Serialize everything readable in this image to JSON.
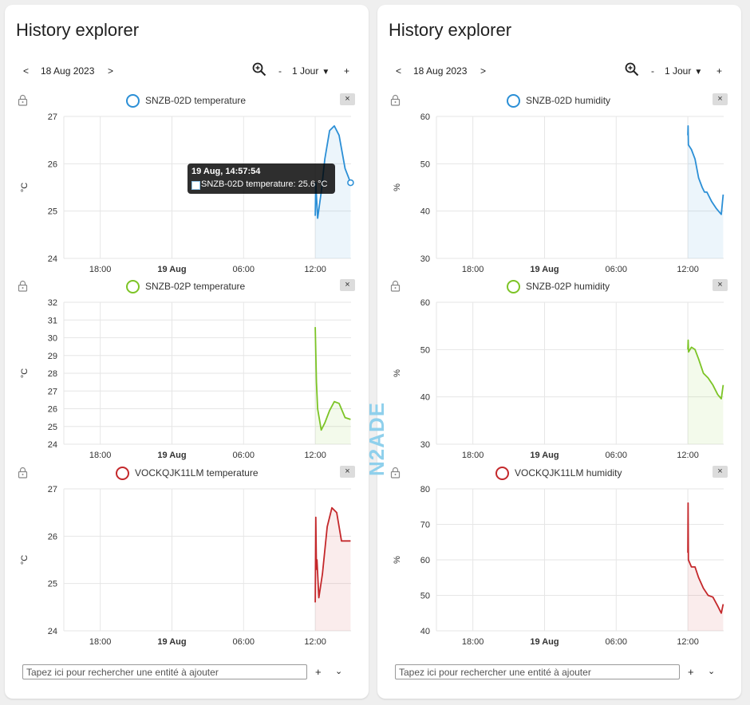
{
  "cards": [
    {
      "title": "History explorer",
      "toolbar": {
        "prev": "<",
        "date": "18 Aug 2023",
        "next": ">",
        "minus": "-",
        "range": "1 Jour",
        "plus": "+"
      },
      "search": {
        "placeholder": "Tapez ici pour rechercher une entité à ajouter",
        "plus": "+"
      },
      "charts": [
        {
          "legend": "SNZB-02D temperature",
          "close": "×",
          "unit": "°C"
        },
        {
          "legend": "SNZB-02P temperature",
          "close": "×",
          "unit": "°C"
        },
        {
          "legend": "VOCKQJK11LM temperature",
          "close": "×",
          "unit": "°C"
        }
      ]
    },
    {
      "title": "History explorer",
      "toolbar": {
        "prev": "<",
        "date": "18 Aug 2023",
        "next": ">",
        "minus": "-",
        "range": "1 Jour",
        "plus": "+"
      },
      "search": {
        "placeholder": "Tapez ici pour rechercher une entité à ajouter",
        "plus": "+"
      },
      "charts": [
        {
          "legend": "SNZB-02D humidity",
          "close": "×",
          "unit": "%"
        },
        {
          "legend": "SNZB-02P humidity",
          "close": "×",
          "unit": "%"
        },
        {
          "legend": "VOCKQJK11LM humidity",
          "close": "×",
          "unit": "%"
        }
      ]
    }
  ],
  "tooltip": {
    "title": "19 Aug, 14:57:54",
    "text": "SNZB-02D temperature: 25.6 °C"
  },
  "watermark": "N2ADE",
  "colors": {
    "blue": "#2b8fd6",
    "green": "#7cc426",
    "red": "#c4282b"
  },
  "chart_data": [
    {
      "type": "line",
      "title": "SNZB-02D temperature",
      "color": "#2b8fd6",
      "ylabel": "°C",
      "x_ticks": [
        "18:00",
        "19 Aug",
        "06:00",
        "12:00"
      ],
      "x_bold": "19 Aug",
      "ylim": [
        24,
        27
      ],
      "yticks": [
        24,
        25,
        26,
        27
      ],
      "series": [
        {
          "name": "SNZB-02D temperature",
          "x": [
            12.0,
            12.05,
            12.2,
            12.5,
            12.8,
            13.2,
            13.6,
            14.0,
            14.5,
            14.96
          ],
          "y": [
            24.9,
            25.6,
            24.85,
            25.4,
            26.1,
            26.7,
            26.8,
            26.6,
            25.9,
            25.6
          ]
        }
      ]
    },
    {
      "type": "line",
      "title": "SNZB-02P temperature",
      "color": "#7cc426",
      "ylabel": "°C",
      "x_ticks": [
        "18:00",
        "19 Aug",
        "06:00",
        "12:00"
      ],
      "x_bold": "19 Aug",
      "ylim": [
        24,
        32
      ],
      "yticks": [
        24,
        25,
        26,
        27,
        28,
        29,
        30,
        31,
        32
      ],
      "series": [
        {
          "name": "SNZB-02P temperature",
          "x": [
            12.0,
            12.1,
            12.2,
            12.5,
            12.8,
            13.2,
            13.6,
            14.0,
            14.5,
            14.96
          ],
          "y": [
            30.6,
            27.5,
            26.0,
            24.8,
            25.2,
            25.9,
            26.4,
            26.3,
            25.5,
            25.4
          ]
        }
      ]
    },
    {
      "type": "line",
      "title": "VOCKQJK11LM temperature",
      "color": "#c4282b",
      "ylabel": "°C",
      "x_ticks": [
        "18:00",
        "19 Aug",
        "06:00",
        "12:00"
      ],
      "x_bold": "19 Aug",
      "ylim": [
        24,
        27
      ],
      "yticks": [
        24,
        25,
        26,
        27
      ],
      "series": [
        {
          "name": "VOCKQJK11LM temperature",
          "x": [
            12.0,
            12.05,
            12.1,
            12.15,
            12.3,
            12.6,
            13.0,
            13.4,
            13.8,
            14.2,
            14.5,
            14.96
          ],
          "y": [
            24.6,
            26.4,
            25.3,
            25.5,
            24.7,
            25.2,
            26.2,
            26.6,
            26.5,
            25.9,
            25.9,
            25.9
          ]
        }
      ]
    },
    {
      "type": "line",
      "title": "SNZB-02D humidity",
      "color": "#2b8fd6",
      "ylabel": "%",
      "x_ticks": [
        "18:00",
        "19 Aug",
        "06:00",
        "12:00"
      ],
      "x_bold": "19 Aug",
      "ylim": [
        30,
        60
      ],
      "yticks": [
        30,
        40,
        50,
        60
      ],
      "series": [
        {
          "name": "SNZB-02D humidity",
          "x": [
            12.0,
            12.02,
            12.05,
            12.3,
            12.6,
            12.9,
            13.2,
            13.4,
            13.6,
            14.0,
            14.4,
            14.8,
            14.96
          ],
          "y": [
            56,
            58,
            54,
            53,
            51,
            47,
            45,
            44,
            44,
            42,
            40.5,
            39.3,
            43.5
          ]
        }
      ]
    },
    {
      "type": "line",
      "title": "SNZB-02P humidity",
      "color": "#7cc426",
      "ylabel": "%",
      "x_ticks": [
        "18:00",
        "19 Aug",
        "06:00",
        "12:00"
      ],
      "x_bold": "19 Aug",
      "ylim": [
        30,
        60
      ],
      "yticks": [
        30,
        40,
        50,
        60
      ],
      "series": [
        {
          "name": "SNZB-02P humidity",
          "x": [
            12.0,
            12.03,
            12.06,
            12.3,
            12.6,
            12.9,
            13.3,
            13.7,
            14.1,
            14.5,
            14.8,
            14.96
          ],
          "y": [
            50,
            52,
            49.5,
            50.5,
            50,
            48,
            45,
            44,
            42.5,
            40.5,
            39.6,
            42.5
          ]
        }
      ]
    },
    {
      "type": "line",
      "title": "VOCKQJK11LM humidity",
      "color": "#c4282b",
      "ylabel": "%",
      "x_ticks": [
        "18:00",
        "19 Aug",
        "06:00",
        "12:00"
      ],
      "x_bold": "19 Aug",
      "ylim": [
        40,
        80
      ],
      "yticks": [
        40,
        50,
        60,
        70,
        80
      ],
      "series": [
        {
          "name": "VOCKQJK11LM humidity",
          "x": [
            12.0,
            12.02,
            12.05,
            12.3,
            12.6,
            12.9,
            13.3,
            13.7,
            14.1,
            14.5,
            14.8,
            14.96
          ],
          "y": [
            62,
            76,
            60,
            58,
            58,
            55,
            52,
            50,
            49.5,
            47,
            45,
            47.5
          ]
        }
      ]
    }
  ]
}
